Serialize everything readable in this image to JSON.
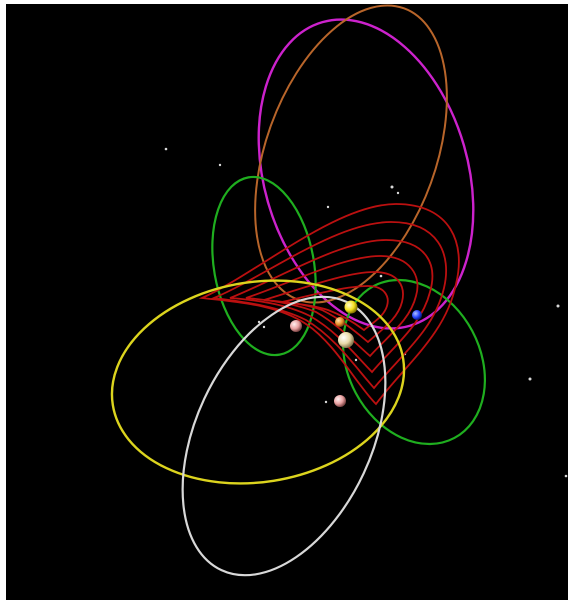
{
  "image": {
    "subject": "orbit-diagram",
    "background_color": "#000000",
    "frame_color": "#ffffff",
    "orbit_colors": {
      "magenta": "#cc22cc",
      "orange": "#b8652a",
      "green": "#1fae1f",
      "yellow": "#dcd41e",
      "white": "#d8d8d8",
      "red": "#bb1010"
    },
    "planet_colors": {
      "yellow": "#f4e020",
      "orange": "#e8902a",
      "tan": "#e9d9a8",
      "pink": "#e8a0a0",
      "blue": "#2846ff"
    }
  }
}
